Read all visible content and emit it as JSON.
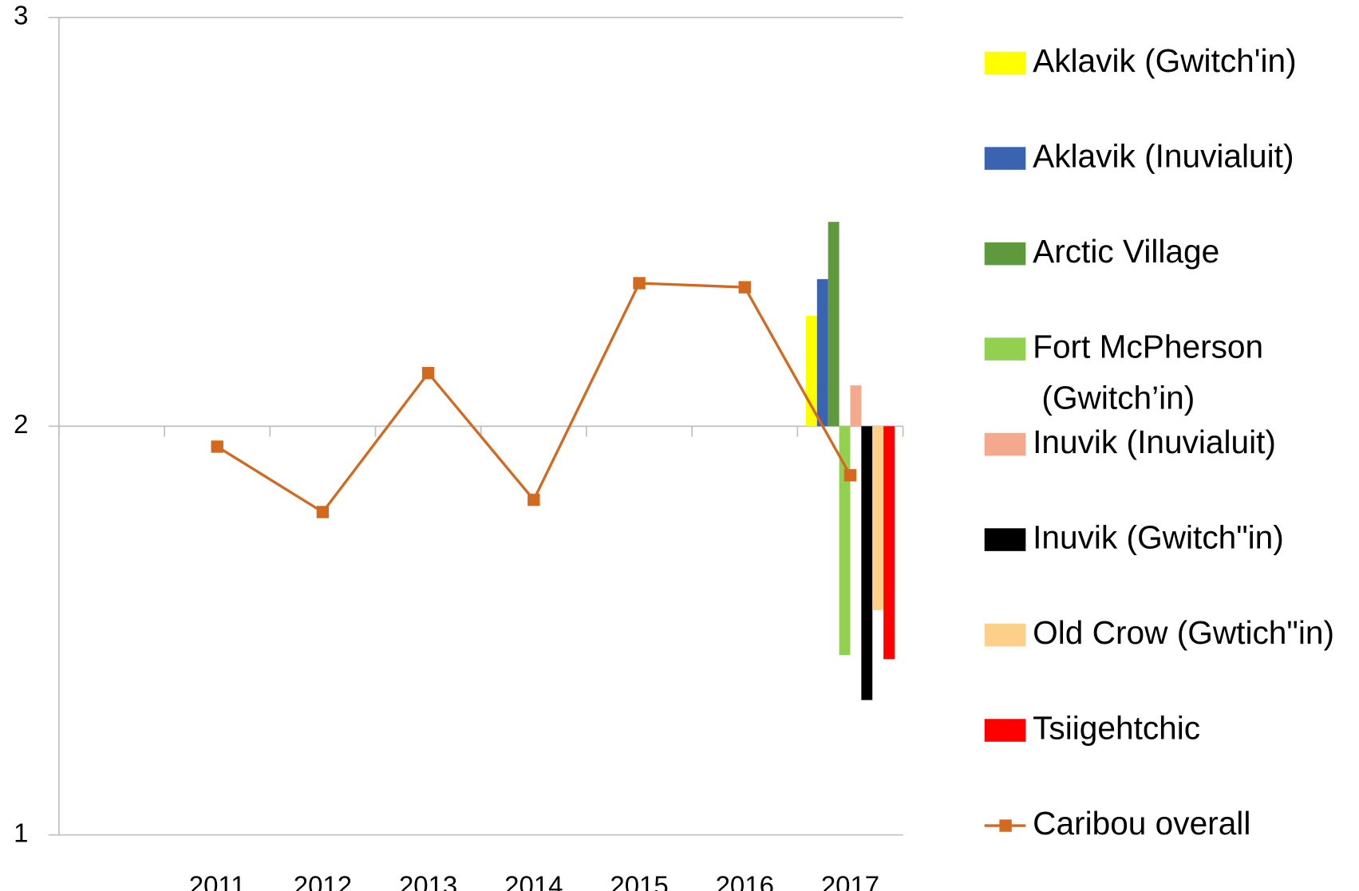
{
  "chart_data": {
    "type": "bar",
    "categories": [
      null,
      "2011",
      "2012",
      "2013",
      "2014",
      "2015",
      "2016",
      "2017"
    ],
    "ylim": [
      1,
      3
    ],
    "yticks": [
      1,
      2,
      3
    ],
    "x_axis_crosses": 2,
    "grid": true,
    "legend": "right",
    "series": [
      {
        "name": "Aklavik (Gwitch'in)",
        "color": "#ffff00",
        "values": [
          null,
          null,
          null,
          null,
          null,
          null,
          null,
          2.27
        ]
      },
      {
        "name": "Aklavik (Inuvialuit)",
        "color": "#3a63b0",
        "values": [
          null,
          null,
          null,
          null,
          null,
          null,
          null,
          2.36
        ]
      },
      {
        "name": "Arctic Village",
        "color": "#5e9a3d",
        "values": [
          null,
          null,
          null,
          null,
          null,
          null,
          null,
          2.5
        ]
      },
      {
        "name": "Fort McPherson (Gwitch’in)",
        "color": "#92d050",
        "values": [
          null,
          null,
          null,
          null,
          null,
          null,
          null,
          1.44
        ]
      },
      {
        "name": "Inuvik (Inuvialuit)",
        "color": "#f4a98c",
        "values": [
          null,
          null,
          null,
          null,
          null,
          null,
          null,
          2.1
        ]
      },
      {
        "name": "Inuvik (Gwitch\"in)",
        "color": "#000000",
        "values": [
          null,
          null,
          null,
          null,
          null,
          null,
          null,
          1.33
        ]
      },
      {
        "name": "Old Crow (Gwtich\"in)",
        "color": "#fdd08a",
        "values": [
          null,
          null,
          null,
          null,
          null,
          null,
          null,
          1.55
        ]
      },
      {
        "name": "Tsiigehtchic",
        "color": "#ff0000",
        "values": [
          null,
          null,
          null,
          null,
          null,
          null,
          null,
          1.43
        ]
      },
      {
        "name": "Caribou overall",
        "color": "#d2691e",
        "type": "line",
        "values": [
          null,
          1.95,
          1.79,
          2.13,
          1.82,
          2.35,
          2.34,
          1.88
        ]
      }
    ]
  }
}
